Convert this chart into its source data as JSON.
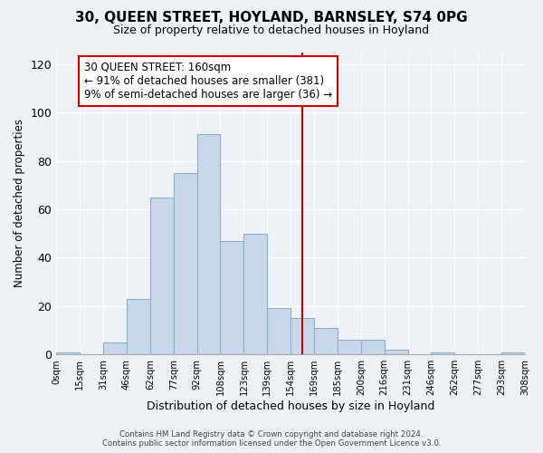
{
  "title": "30, QUEEN STREET, HOYLAND, BARNSLEY, S74 0PG",
  "subtitle": "Size of property relative to detached houses in Hoyland",
  "xlabel": "Distribution of detached houses by size in Hoyland",
  "ylabel": "Number of detached properties",
  "bin_labels": [
    "0sqm",
    "15sqm",
    "31sqm",
    "46sqm",
    "62sqm",
    "77sqm",
    "92sqm",
    "108sqm",
    "123sqm",
    "139sqm",
    "154sqm",
    "169sqm",
    "185sqm",
    "200sqm",
    "216sqm",
    "231sqm",
    "246sqm",
    "262sqm",
    "277sqm",
    "293sqm",
    "308sqm"
  ],
  "bar_values": [
    1,
    0,
    5,
    23,
    65,
    75,
    91,
    47,
    50,
    19,
    15,
    11,
    6,
    6,
    2,
    0,
    1,
    0,
    0,
    1
  ],
  "bar_color": "#c8d8ea",
  "bar_edge_color": "#8ab0cc",
  "vline_x": 10.5,
  "vline_color": "#cc0000",
  "annotation_title": "30 QUEEN STREET: 160sqm",
  "annotation_line1": "← 91% of detached houses are smaller (381)",
  "annotation_line2": "9% of semi-detached houses are larger (36) →",
  "annotation_box_color": "#ffffff",
  "annotation_box_edge": "#cc0000",
  "ylim": [
    0,
    125
  ],
  "yticks": [
    0,
    20,
    40,
    60,
    80,
    100,
    120
  ],
  "footer1": "Contains HM Land Registry data © Crown copyright and database right 2024.",
  "footer2": "Contains public sector information licensed under the Open Government Licence v3.0.",
  "bg_color": "#eef2f7"
}
